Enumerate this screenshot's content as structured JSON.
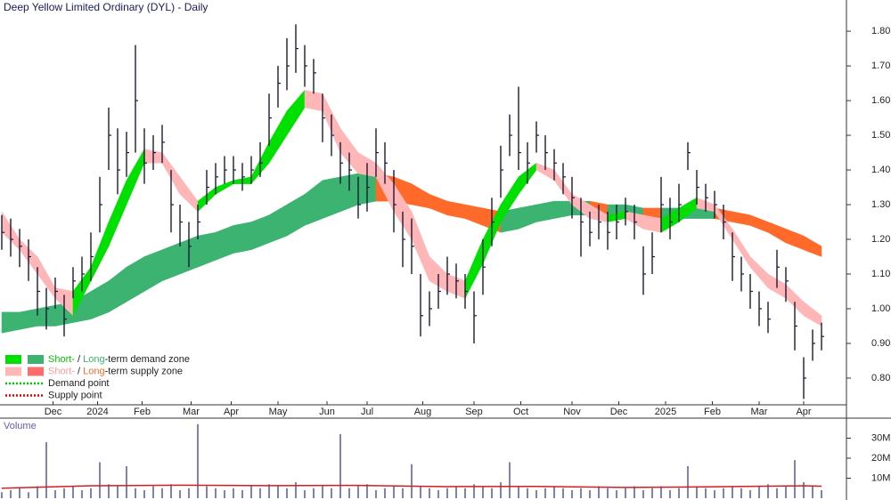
{
  "chart_data": [
    {
      "type": "ohlc",
      "title": "Deep Yellow Limited Ordinary (DYL) - Daily",
      "color": "#1a1a3a",
      "x": [
        0,
        4,
        8,
        12,
        16,
        20,
        24,
        28,
        32,
        36,
        40,
        44,
        48,
        52,
        56,
        60,
        64,
        68,
        72,
        76,
        80,
        84,
        88,
        92,
        96,
        100,
        104,
        108,
        112,
        116,
        120,
        124,
        128,
        132,
        136,
        140,
        144,
        148,
        152,
        156,
        160,
        164,
        168,
        172,
        176,
        180,
        184,
        188,
        192,
        196,
        200,
        204,
        208,
        212,
        216,
        220,
        224,
        228,
        232,
        236,
        240,
        244,
        248,
        252,
        256,
        260,
        264,
        268,
        272,
        276,
        280,
        284,
        288,
        292,
        296,
        300,
        304,
        308,
        312,
        316,
        320,
        324,
        328,
        332,
        336,
        340,
        344,
        348,
        352,
        356,
        360,
        364,
        368
      ],
      "high": [
        1.27,
        1.26,
        1.23,
        1.2,
        1.12,
        1.06,
        1.09,
        1.04,
        1.12,
        1.15,
        1.22,
        1.38,
        1.58,
        1.52,
        1.51,
        1.76,
        1.52,
        1.5,
        1.53,
        1.4,
        1.3,
        1.25,
        1.3,
        1.4,
        1.42,
        1.44,
        1.44,
        1.42,
        1.44,
        1.48,
        1.62,
        1.7,
        1.78,
        1.82,
        1.76,
        1.72,
        1.62,
        1.56,
        1.48,
        1.45,
        1.38,
        1.42,
        1.52,
        1.48,
        1.4,
        1.28,
        1.26,
        1.1,
        1.05,
        1.1,
        1.15,
        1.13,
        1.1,
        1.05,
        1.2,
        1.32,
        1.47,
        1.56,
        1.64,
        1.48,
        1.54,
        1.5,
        1.46,
        1.42,
        1.38,
        1.32,
        1.28,
        1.3,
        1.28,
        1.3,
        1.32,
        1.3,
        1.18,
        1.22,
        1.38,
        1.32,
        1.36,
        1.48,
        1.4,
        1.36,
        1.34,
        1.3,
        1.22,
        1.15,
        1.1,
        1.05,
        1.02,
        1.17,
        1.12,
        1.02,
        0.86,
        0.94,
        0.96
      ],
      "low": [
        1.17,
        1.15,
        1.12,
        1.08,
        0.98,
        0.94,
        1.0,
        0.92,
        1.03,
        1.05,
        1.08,
        1.22,
        1.4,
        1.33,
        1.38,
        1.45,
        1.36,
        1.4,
        1.42,
        1.22,
        1.18,
        1.12,
        1.2,
        1.3,
        1.33,
        1.36,
        1.36,
        1.34,
        1.36,
        1.38,
        1.47,
        1.58,
        1.63,
        1.68,
        1.64,
        1.62,
        1.48,
        1.44,
        1.36,
        1.34,
        1.26,
        1.28,
        1.38,
        1.36,
        1.22,
        1.12,
        1.1,
        0.92,
        0.95,
        1.0,
        1.04,
        1.03,
        1.0,
        0.9,
        1.04,
        1.18,
        1.32,
        1.44,
        1.4,
        1.36,
        1.45,
        1.4,
        1.37,
        1.33,
        1.26,
        1.15,
        1.18,
        1.2,
        1.17,
        1.2,
        1.24,
        1.2,
        1.04,
        1.1,
        1.22,
        1.2,
        1.25,
        1.4,
        1.3,
        1.28,
        1.26,
        1.2,
        1.08,
        1.05,
        1.0,
        0.95,
        0.93,
        1.06,
        1.02,
        0.88,
        0.74,
        0.85,
        0.88
      ],
      "close": [
        1.22,
        1.2,
        1.18,
        1.15,
        1.05,
        1.0,
        1.05,
        0.97,
        1.08,
        1.1,
        1.15,
        1.3,
        1.5,
        1.4,
        1.45,
        1.6,
        1.42,
        1.45,
        1.48,
        1.3,
        1.25,
        1.18,
        1.25,
        1.35,
        1.38,
        1.4,
        1.4,
        1.38,
        1.4,
        1.42,
        1.55,
        1.65,
        1.7,
        1.75,
        1.7,
        1.68,
        1.55,
        1.5,
        1.42,
        1.4,
        1.3,
        1.35,
        1.45,
        1.42,
        1.3,
        1.2,
        1.18,
        0.98,
        1.0,
        1.05,
        1.1,
        1.08,
        1.05,
        0.98,
        1.12,
        1.25,
        1.4,
        1.5,
        1.45,
        1.42,
        1.5,
        1.45,
        1.42,
        1.38,
        1.32,
        1.25,
        1.22,
        1.25,
        1.22,
        1.25,
        1.28,
        1.25,
        1.1,
        1.15,
        1.3,
        1.25,
        1.3,
        1.45,
        1.35,
        1.32,
        1.3,
        1.25,
        1.15,
        1.1,
        1.05,
        1.0,
        0.97,
        1.12,
        1.08,
        0.95,
        0.8,
        0.9,
        0.92
      ],
      "bands": {
        "x": [
          0,
          8,
          16,
          24,
          32,
          40,
          48,
          56,
          64,
          72,
          80,
          88,
          96,
          104,
          112,
          120,
          128,
          136,
          144,
          152,
          160,
          168,
          176,
          184,
          192,
          200,
          208,
          216,
          224,
          232,
          240,
          248,
          256,
          264,
          272,
          280,
          288,
          296,
          304,
          312,
          320,
          328,
          336,
          344,
          352,
          360,
          368
        ],
        "short_upper": [
          1.28,
          1.2,
          1.15,
          1.06,
          1.05,
          1.12,
          1.25,
          1.37,
          1.46,
          1.45,
          1.38,
          1.31,
          1.35,
          1.37,
          1.38,
          1.48,
          1.57,
          1.63,
          1.62,
          1.52,
          1.45,
          1.42,
          1.36,
          1.28,
          1.15,
          1.1,
          1.08,
          1.2,
          1.3,
          1.38,
          1.42,
          1.4,
          1.33,
          1.3,
          1.27,
          1.28,
          1.27,
          1.26,
          1.29,
          1.32,
          1.3,
          1.23,
          1.15,
          1.1,
          1.07,
          1.02,
          0.98
        ],
        "short_lower": [
          1.22,
          1.17,
          1.1,
          1.03,
          0.98,
          1.08,
          1.18,
          1.3,
          1.42,
          1.42,
          1.33,
          1.28,
          1.33,
          1.36,
          1.36,
          1.42,
          1.5,
          1.58,
          1.57,
          1.45,
          1.39,
          1.38,
          1.28,
          1.2,
          1.08,
          1.05,
          1.03,
          1.13,
          1.25,
          1.33,
          1.4,
          1.37,
          1.3,
          1.26,
          1.25,
          1.26,
          1.23,
          1.22,
          1.25,
          1.29,
          1.28,
          1.2,
          1.12,
          1.06,
          1.03,
          0.98,
          0.95
        ],
        "long_upper": [
          0.99,
          0.99,
          1.0,
          1.01,
          1.02,
          1.05,
          1.08,
          1.12,
          1.15,
          1.17,
          1.19,
          1.21,
          1.22,
          1.24,
          1.25,
          1.27,
          1.3,
          1.33,
          1.37,
          1.38,
          1.39,
          1.39,
          1.38,
          1.36,
          1.33,
          1.31,
          1.3,
          1.29,
          1.28,
          1.29,
          1.3,
          1.31,
          1.31,
          1.31,
          1.3,
          1.3,
          1.29,
          1.29,
          1.29,
          1.29,
          1.29,
          1.28,
          1.27,
          1.25,
          1.23,
          1.21,
          1.18
        ],
        "long_lower": [
          0.93,
          0.94,
          0.95,
          0.95,
          0.96,
          0.97,
          0.99,
          1.02,
          1.05,
          1.08,
          1.1,
          1.12,
          1.14,
          1.16,
          1.17,
          1.19,
          1.21,
          1.24,
          1.26,
          1.28,
          1.3,
          1.31,
          1.31,
          1.3,
          1.29,
          1.27,
          1.26,
          1.24,
          1.22,
          1.23,
          1.25,
          1.26,
          1.27,
          1.27,
          1.26,
          1.26,
          1.27,
          1.26,
          1.26,
          1.26,
          1.26,
          1.25,
          1.24,
          1.22,
          1.19,
          1.17,
          1.15
        ]
      },
      "band_colors": {
        "short_demand": "#00e000",
        "long_demand": "#3cb371",
        "short_supply": "#ffb6b6",
        "long_supply": "#ff6a2a"
      },
      "legend": {
        "items": [
          {
            "swatches": [
              "#00e000",
              "#3cb371"
            ],
            "parts": [
              {
                "text": "Short-",
                "color": "#00c800"
              },
              {
                "text": " / ",
                "color": "#222222"
              },
              {
                "text": "Long",
                "color": "#3cb371"
              },
              {
                "text": "-term demand zone",
                "color": "#222222"
              }
            ]
          },
          {
            "swatches": [
              "#ffb6b6",
              "#ff6a6a"
            ],
            "parts": [
              {
                "text": "Short-",
                "color": "#ff9c9c"
              },
              {
                "text": " / ",
                "color": "#222222"
              },
              {
                "text": "Long",
                "color": "#ff6a2a"
              },
              {
                "text": "-term supply zone",
                "color": "#222222"
              }
            ]
          },
          {
            "line": "#00c800",
            "parts": [
              {
                "text": "Demand point",
                "color": "#222222"
              }
            ]
          },
          {
            "line": "#e00000",
            "parts": [
              {
                "text": "Supply point",
                "color": "#222222"
              }
            ]
          }
        ]
      },
      "xlim": [
        0,
        372
      ],
      "ylim": [
        0.723,
        1.89
      ],
      "xticks": [
        {
          "value": 23,
          "label": "Dec"
        },
        {
          "value": 43,
          "label": "2024"
        },
        {
          "value": 63,
          "label": "Feb"
        },
        {
          "value": 85,
          "label": "Mar"
        },
        {
          "value": 103,
          "label": "Apr"
        },
        {
          "value": 124,
          "label": "May"
        },
        {
          "value": 146,
          "label": "Jun"
        },
        {
          "value": 164,
          "label": "Jul"
        },
        {
          "value": 189,
          "label": "Aug"
        },
        {
          "value": 212,
          "label": "Sep"
        },
        {
          "value": 233,
          "label": "Oct"
        },
        {
          "value": 256,
          "label": "Nov"
        },
        {
          "value": 277,
          "label": "Dec"
        },
        {
          "value": 298,
          "label": "2025"
        },
        {
          "value": 319,
          "label": "Feb"
        },
        {
          "value": 340,
          "label": "Mar"
        },
        {
          "value": 360,
          "label": "Apr"
        }
      ],
      "yticks": [
        {
          "value": 0.8,
          "label": "0.80"
        },
        {
          "value": 0.9,
          "label": "0.90"
        },
        {
          "value": 1.0,
          "label": "1.00"
        },
        {
          "value": 1.1,
          "label": "1.10"
        },
        {
          "value": 1.2,
          "label": "1.20"
        },
        {
          "value": 1.3,
          "label": "1.30"
        },
        {
          "value": 1.4,
          "label": "1.40"
        },
        {
          "value": 1.5,
          "label": "1.50"
        },
        {
          "value": 1.6,
          "label": "1.60"
        },
        {
          "value": 1.7,
          "label": "1.70"
        },
        {
          "value": 1.8,
          "label": "1.80"
        }
      ]
    },
    {
      "type": "bar",
      "title": "Volume",
      "color": "#8080c0",
      "x": [
        0,
        4,
        8,
        12,
        16,
        20,
        24,
        28,
        32,
        36,
        40,
        44,
        48,
        52,
        56,
        60,
        64,
        68,
        72,
        76,
        80,
        84,
        88,
        92,
        96,
        100,
        104,
        108,
        112,
        116,
        120,
        124,
        128,
        132,
        136,
        140,
        144,
        148,
        152,
        156,
        160,
        164,
        168,
        172,
        176,
        180,
        184,
        188,
        192,
        196,
        200,
        204,
        208,
        212,
        216,
        220,
        224,
        228,
        232,
        236,
        240,
        244,
        248,
        252,
        256,
        260,
        264,
        268,
        272,
        276,
        280,
        284,
        288,
        292,
        296,
        300,
        304,
        308,
        312,
        316,
        320,
        324,
        328,
        332,
        336,
        340,
        344,
        348,
        352,
        356,
        360,
        364,
        368
      ],
      "values": [
        3000000,
        4000000,
        5000000,
        3000000,
        6000000,
        28000000,
        4000000,
        5000000,
        6000000,
        4000000,
        5000000,
        18000000,
        7000000,
        6000000,
        16000000,
        5000000,
        4000000,
        6000000,
        5000000,
        7000000,
        4000000,
        5000000,
        37000000,
        6000000,
        5000000,
        4000000,
        5000000,
        4000000,
        6000000,
        5000000,
        7000000,
        6000000,
        5000000,
        8000000,
        4000000,
        5000000,
        6000000,
        5000000,
        32000000,
        5000000,
        6000000,
        7000000,
        4000000,
        5000000,
        6000000,
        5000000,
        17000000,
        6000000,
        5000000,
        4000000,
        5000000,
        6000000,
        5000000,
        7000000,
        6000000,
        5000000,
        8000000,
        18000000,
        6000000,
        5000000,
        4000000,
        5000000,
        6000000,
        5000000,
        4000000,
        5000000,
        4000000,
        6000000,
        5000000,
        4000000,
        5000000,
        6000000,
        4000000,
        5000000,
        6000000,
        4000000,
        5000000,
        16000000,
        6000000,
        5000000,
        4000000,
        5000000,
        6000000,
        5000000,
        4000000,
        6000000,
        7000000,
        5000000,
        6000000,
        19000000,
        8000000,
        6000000,
        4000000
      ],
      "average": {
        "color": "#d02020",
        "x": [
          0,
          40,
          80,
          120,
          160,
          200,
          240,
          280,
          320,
          360,
          368
        ],
        "values": [
          5000000,
          6200000,
          6500000,
          6300000,
          6400000,
          5800000,
          5900000,
          5400000,
          5700000,
          6200000,
          6000000
        ]
      },
      "xlim": [
        0,
        372
      ],
      "ylim": [
        0,
        40000000
      ],
      "yticks": [
        {
          "value": 10000000,
          "label": "10M"
        },
        {
          "value": 20000000,
          "label": "20M"
        },
        {
          "value": 30000000,
          "label": "30M"
        }
      ]
    }
  ]
}
